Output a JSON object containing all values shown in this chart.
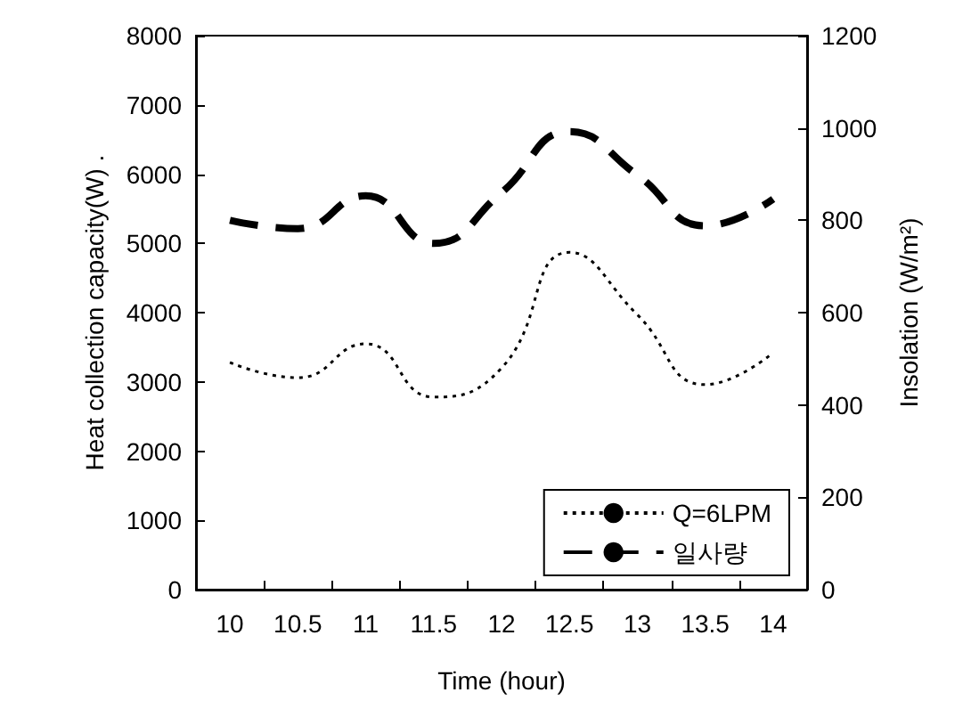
{
  "chart_data": {
    "type": "line",
    "xlabel": "Time (hour)",
    "ylabel": "Heat collection capacity(W) .",
    "y2label": "Insolation (W/m²)",
    "categories": [
      "10",
      "10.5",
      "11",
      "11.5",
      "12",
      "12.5",
      "13",
      "13.5",
      "14"
    ],
    "series": [
      {
        "name": "Q=6LPM",
        "color": "#000000",
        "line_style": "dotted",
        "values": [
          3280,
          3060,
          3550,
          2780,
          3200,
          4870,
          3970,
          2960,
          3420
        ]
      },
      {
        "name": "일사량",
        "color": "#000000",
        "line_style": "dashed",
        "axis": "y2",
        "values": [
          800,
          782,
          853,
          750,
          860,
          992,
          898,
          788,
          846
        ]
      }
    ],
    "ylim": [
      0,
      8000
    ],
    "yticks": [
      0,
      1000,
      2000,
      3000,
      4000,
      5000,
      6000,
      7000,
      8000
    ],
    "y2lim": [
      0,
      1200
    ],
    "y2ticks": [
      0,
      200,
      400,
      600,
      800,
      1000,
      1200
    ],
    "grid": false,
    "legend": "bottom right",
    "marker": "none"
  }
}
